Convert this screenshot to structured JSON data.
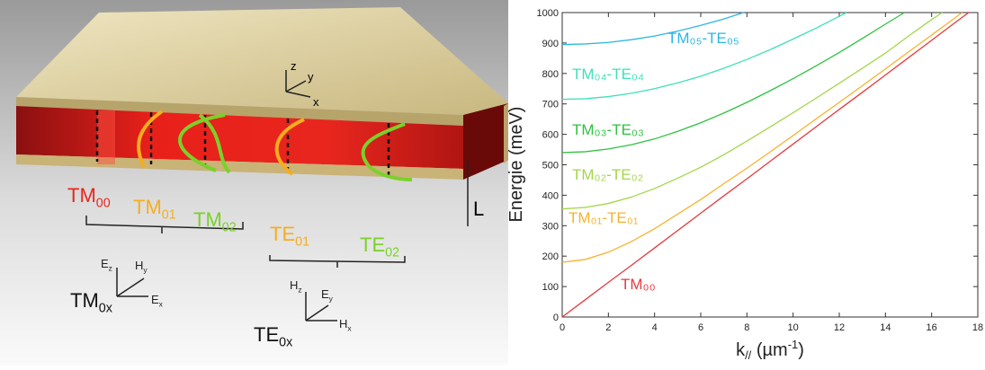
{
  "illustration": {
    "axes": {
      "z": "z",
      "y": "y",
      "x": "x"
    },
    "thickness": "L",
    "modes": [
      {
        "base": "TM",
        "sub": "00",
        "color": "#e8261e"
      },
      {
        "base": "TM",
        "sub": "01",
        "color": "#f5ad1f"
      },
      {
        "base": "TM",
        "sub": "02",
        "color": "#7ad12a"
      },
      {
        "base": "TE",
        "sub": "01",
        "color": "#f5ad1f"
      },
      {
        "base": "TE",
        "sub": "02",
        "color": "#7ad12a"
      }
    ],
    "tm_frame": {
      "e_z": [
        "E",
        "z"
      ],
      "h_y": [
        "H",
        "y"
      ],
      "e_x": [
        "E",
        "x"
      ],
      "name": [
        "TM",
        "0x"
      ]
    },
    "te_frame": {
      "h_z": [
        "H",
        "z"
      ],
      "e_y": [
        "E",
        "y"
      ],
      "h_x": [
        "H",
        "x"
      ],
      "name": [
        "TE",
        "0x"
      ]
    }
  },
  "chart_data": {
    "type": "line",
    "y_label": "Energie (meV)",
    "x_label": {
      "base": "k",
      "sub": "//",
      "text": " (µm",
      "sup": "-1",
      "end": ")"
    },
    "xlim": [
      0,
      18
    ],
    "ylim": [
      0,
      1000
    ],
    "xticks": [
      0,
      2,
      4,
      6,
      8,
      10,
      12,
      14,
      16,
      18
    ],
    "yticks": [
      0,
      100,
      200,
      300,
      400,
      500,
      600,
      700,
      800,
      900,
      1000
    ],
    "series": [
      {
        "name": "TM₀₀",
        "color": "#e8383d",
        "x": [
          0,
          1,
          2,
          3,
          4,
          5,
          6,
          7,
          8,
          9,
          10,
          11,
          12,
          13,
          14,
          15,
          16,
          17,
          17.6
        ],
        "values": [
          0,
          57,
          114,
          170,
          227,
          284,
          341,
          398,
          454,
          511,
          568,
          625,
          682,
          738,
          795,
          852,
          909,
          966,
          1000
        ]
      },
      {
        "name": "TM₀₁-TE₀₁",
        "color": "#f7b22e",
        "x": [
          0,
          1,
          2,
          3,
          4,
          5,
          6,
          7,
          8,
          9,
          10,
          11,
          12,
          13,
          14,
          15,
          16,
          17,
          17.32
        ],
        "values": [
          180,
          189,
          213,
          248,
          290,
          338,
          386,
          438,
          489,
          542,
          596,
          651,
          705,
          760,
          815,
          871,
          926,
          982,
          1000
        ]
      },
      {
        "name": "TM₀₂-TE₀₂",
        "color": "#a3d64a",
        "x": [
          0,
          1,
          2,
          3,
          4,
          5,
          6,
          7,
          8,
          9,
          10,
          11,
          12,
          13,
          14,
          15,
          16,
          16.46
        ],
        "values": [
          355,
          360,
          373,
          394,
          422,
          456,
          492,
          533,
          578,
          624,
          671,
          719,
          768,
          817,
          867,
          923,
          977,
          1000
        ]
      },
      {
        "name": "TM₀₃-TE₀₃",
        "color": "#2fc23f",
        "x": [
          0,
          1,
          2,
          3,
          4,
          5,
          6,
          7,
          8,
          9,
          10,
          11,
          12,
          13,
          14,
          14.82
        ],
        "values": [
          540,
          543,
          552,
          566,
          585,
          610,
          638,
          670,
          705,
          743,
          783,
          825,
          869,
          915,
          962,
          1000
        ]
      },
      {
        "name": "TM₀₄-TE₀₄",
        "color": "#3fe0b8",
        "x": [
          0,
          1,
          2,
          3,
          4,
          5,
          6,
          7,
          8,
          9,
          10,
          11,
          12,
          12.31
        ],
        "values": [
          715,
          717,
          724,
          735,
          750,
          769,
          791,
          817,
          846,
          878,
          913,
          949,
          988,
          1000
        ]
      },
      {
        "name": "TM₀₅-TE₀₅",
        "color": "#2bb6e6",
        "x": [
          0,
          1,
          2,
          3,
          4,
          5,
          6,
          7,
          7.85
        ],
        "values": [
          895,
          897,
          902,
          911,
          923,
          939,
          958,
          979,
          1000
        ]
      }
    ]
  }
}
